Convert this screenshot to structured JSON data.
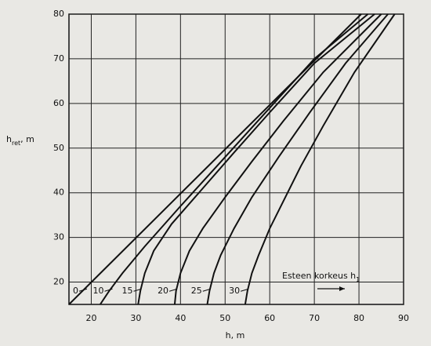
{
  "chart_data": {
    "type": "line",
    "y_label": [
      "h",
      "ret",
      ", m"
    ],
    "x_label": "h, m",
    "annotation": [
      "Esteen korkeus h",
      "1"
    ],
    "xlim": [
      15,
      90
    ],
    "ylim": [
      15,
      80
    ],
    "xticks": [
      20,
      30,
      40,
      50,
      60,
      70,
      80,
      90
    ],
    "yticks": [
      20,
      30,
      40,
      50,
      60,
      70,
      80
    ],
    "grid": true,
    "color": "#111111",
    "series": [
      {
        "name": "0",
        "x": [
          15,
          80.5
        ],
        "values": [
          15,
          80
        ]
      },
      {
        "name": "10",
        "x": [
          22,
          24,
          27,
          32,
          40,
          50,
          60,
          70,
          82
        ],
        "values": [
          15,
          18,
          22,
          28,
          37,
          48,
          59,
          70,
          80
        ]
      },
      {
        "name": "15",
        "x": [
          30.5,
          31,
          32,
          34,
          38,
          45,
          52,
          60,
          70,
          83.5
        ],
        "values": [
          15,
          18,
          22,
          27,
          33,
          41,
          49,
          58,
          69,
          80
        ]
      },
      {
        "name": "20",
        "x": [
          38.7,
          39,
          40,
          42,
          45,
          50,
          56,
          63,
          72,
          85
        ],
        "values": [
          15,
          18,
          22,
          27,
          32,
          39,
          47,
          56,
          67,
          80
        ]
      },
      {
        "name": "25",
        "x": [
          46,
          46.5,
          47.5,
          49,
          52,
          56,
          62,
          69,
          77,
          86.5
        ],
        "values": [
          15,
          18,
          22,
          26,
          32,
          39,
          48,
          58,
          69,
          80
        ]
      },
      {
        "name": "30",
        "x": [
          54.5,
          55,
          56,
          57.5,
          60,
          63,
          67,
          72,
          79,
          88
        ],
        "values": [
          15,
          18,
          22,
          26,
          32,
          38,
          46,
          55,
          67,
          80
        ]
      }
    ]
  }
}
